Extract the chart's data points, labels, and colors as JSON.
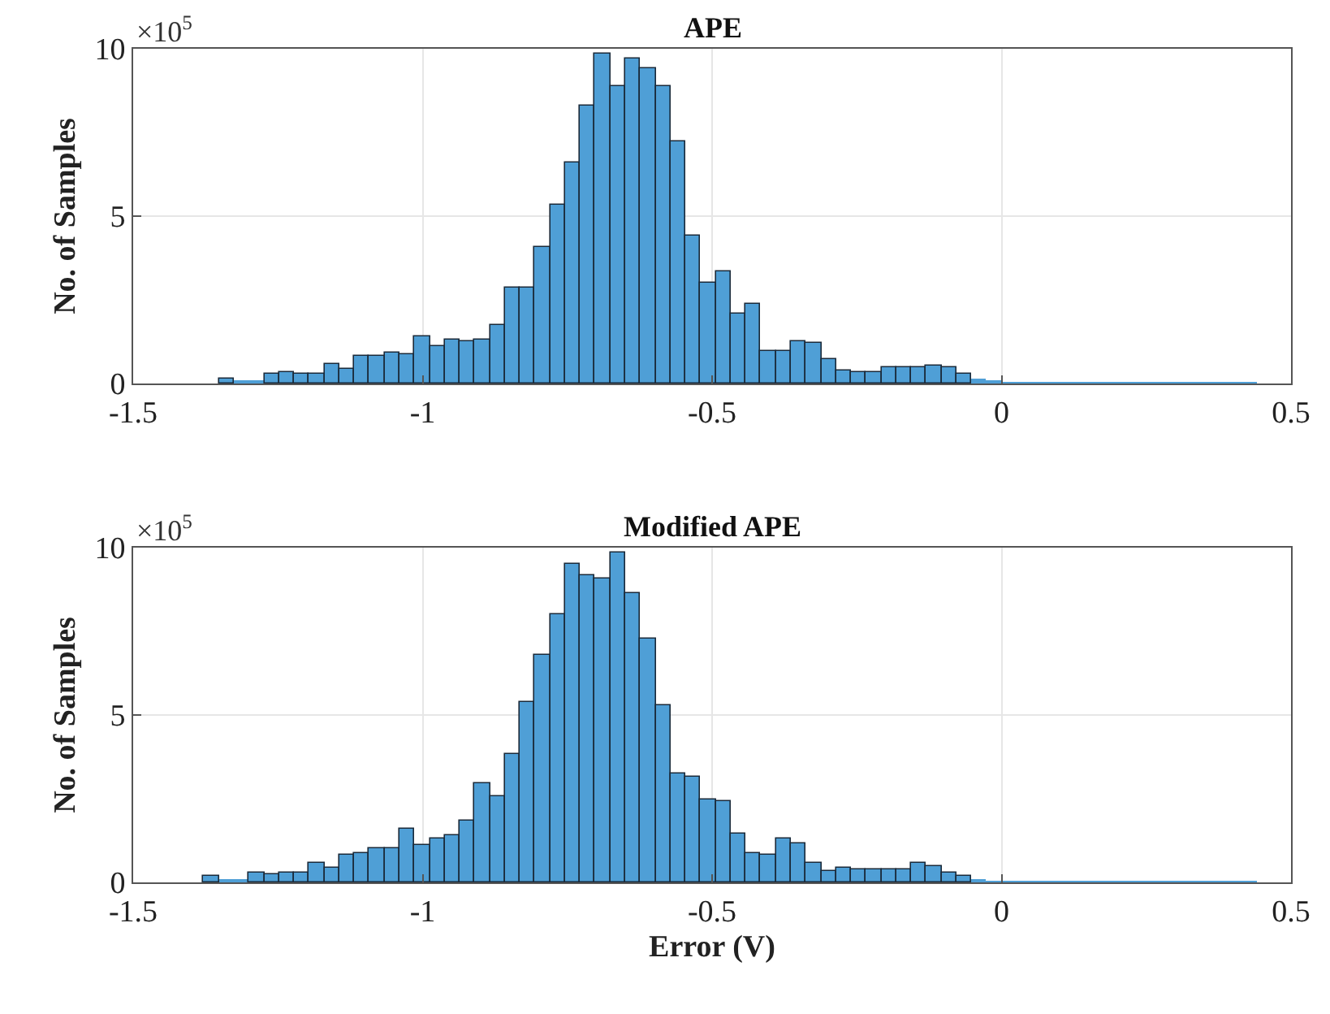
{
  "chart_data": [
    {
      "type": "histogram",
      "title": "APE",
      "ylabel": "No. of Samples",
      "annotations": [
        "×10$^{5}$"
      ],
      "color": "#4f9fd6",
      "bins": [
        -1.352,
        -1.326,
        -1.3,
        -1.274,
        -1.248,
        -1.222,
        -1.196,
        -1.17,
        -1.144,
        -1.118,
        -1.092,
        -1.066,
        -1.04,
        -1.014,
        -0.988,
        -0.962,
        -0.936,
        -0.91,
        -0.884,
        -0.858,
        -0.832,
        -0.806,
        -0.78,
        -0.754,
        -0.728,
        -0.702,
        -0.676,
        -0.65,
        -0.624,
        -0.598,
        -0.572,
        -0.546,
        -0.52,
        -0.494,
        -0.468,
        -0.442,
        -0.416,
        -0.39,
        -0.364,
        -0.338,
        -0.312,
        -0.286,
        -0.26,
        -0.234,
        -0.208,
        -0.182,
        -0.156,
        -0.13,
        -0.104,
        -0.078,
        -0.052,
        -0.026,
        0,
        0.026,
        0.052,
        0.078,
        0.104,
        0.13,
        0.156,
        0.182,
        0.208,
        0.234,
        0.26,
        0.286,
        0.312,
        0.338,
        0.364,
        0.39,
        0.416,
        0.442
      ],
      "values": [
        0.16,
        0.12,
        0.08,
        0.28,
        0.35,
        0.31,
        0.28,
        0.56,
        0.43,
        0.81,
        0.81,
        0.94,
        0.87,
        1.42,
        1.12,
        1.3,
        1.24,
        1.3,
        1.76,
        2.88,
        2.88,
        4.09,
        5.35,
        6.62,
        8.29,
        9.85,
        8.86,
        9.72,
        9.44,
        8.86,
        7.23,
        4.42,
        3.0,
        3.34,
        2.11,
        2.37,
        0.96,
        0.96,
        1.27,
        1.22,
        0.74,
        0.38,
        0.35,
        0.35,
        0.48,
        0.48,
        0.48,
        0.53,
        0.49,
        0.3,
        0.13,
        0.05,
        0.04,
        0.04,
        0.04,
        0.04,
        0.04,
        0.04,
        0.04,
        0.04,
        0.04,
        0.04,
        0.04,
        0.04,
        0.04,
        0.04,
        0.04,
        0.04,
        0.04
      ],
      "xlim": [
        -1.5,
        0.5
      ],
      "xticks": [
        -1.5,
        -1,
        -0.5,
        0,
        0.5
      ],
      "ylim": [
        0,
        10
      ],
      "yticks": [
        0,
        5,
        10
      ],
      "grid": true
    },
    {
      "type": "histogram",
      "title": "Modified APE",
      "xlabel": "Error (V)",
      "ylabel": "No. of Samples",
      "annotations": [
        "×10$^{5}$"
      ],
      "color": "#4f9fd6",
      "bins": [
        -1.378,
        -1.352,
        -1.326,
        -1.3,
        -1.274,
        -1.248,
        -1.222,
        -1.196,
        -1.17,
        -1.144,
        -1.118,
        -1.092,
        -1.066,
        -1.04,
        -1.014,
        -0.988,
        -0.962,
        -0.936,
        -0.91,
        -0.884,
        -0.858,
        -0.832,
        -0.806,
        -0.78,
        -0.754,
        -0.728,
        -0.702,
        -0.676,
        -0.65,
        -0.624,
        -0.598,
        -0.572,
        -0.546,
        -0.52,
        -0.494,
        -0.468,
        -0.442,
        -0.416,
        -0.39,
        -0.364,
        -0.338,
        -0.312,
        -0.286,
        -0.26,
        -0.234,
        -0.208,
        -0.182,
        -0.156,
        -0.13,
        -0.104,
        -0.078,
        -0.052,
        -0.026,
        0,
        0.026,
        0.052,
        0.078,
        0.104,
        0.13,
        0.156,
        0.182,
        0.208,
        0.234,
        0.26,
        0.286,
        0.312,
        0.338,
        0.364,
        0.39,
        0.416,
        0.442
      ],
      "values": [
        0.2,
        0.08,
        0.08,
        0.28,
        0.22,
        0.3,
        0.3,
        0.58,
        0.42,
        0.82,
        0.85,
        1.02,
        1.02,
        1.58,
        1.12,
        1.33,
        1.4,
        1.85,
        2.95,
        2.55,
        3.83,
        5.4,
        6.78,
        8.0,
        9.5,
        9.17,
        9.08,
        9.87,
        8.63,
        7.3,
        5.3,
        3.25,
        3.17,
        2.47,
        2.45,
        1.47,
        0.87,
        0.83,
        1.3,
        1.17,
        0.58,
        0.33,
        0.45,
        0.37,
        0.37,
        0.37,
        0.37,
        0.57,
        0.5,
        0.3,
        0.2,
        0.07,
        0.03,
        0.02,
        0.03,
        0.03,
        0.03,
        0.03,
        0.03,
        0.03,
        0.03,
        0.03,
        0.03,
        0.03,
        0.03,
        0.03,
        0.03,
        0.03,
        0.03,
        0.03
      ],
      "xlim": [
        -1.5,
        0.5
      ],
      "xticks": [
        -1.5,
        -1,
        -0.5,
        0,
        0.5
      ],
      "ylim": [
        0,
        10
      ],
      "yticks": [
        0,
        5,
        10
      ],
      "grid": true
    }
  ]
}
